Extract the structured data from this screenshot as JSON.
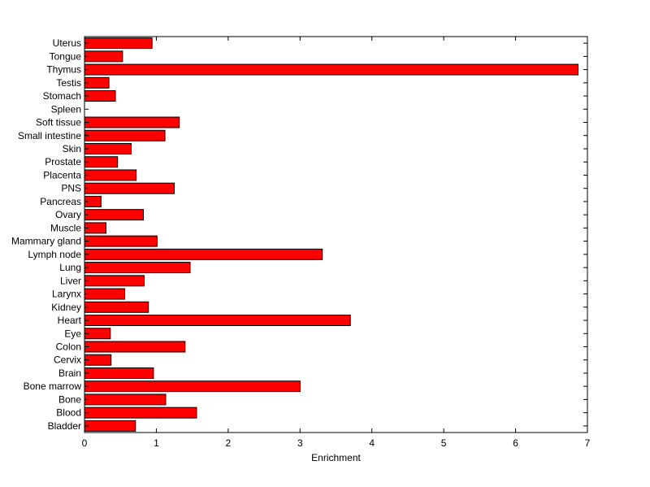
{
  "chart_data": {
    "type": "bar",
    "orientation": "horizontal",
    "categories": [
      "Bladder",
      "Blood",
      "Bone",
      "Bone marrow",
      "Brain",
      "Cervix",
      "Colon",
      "Eye",
      "Heart",
      "Kidney",
      "Larynx",
      "Liver",
      "Lung",
      "Lymph node",
      "Mammary gland",
      "Muscle",
      "Ovary",
      "Pancreas",
      "PNS",
      "Placenta",
      "Prostate",
      "Skin",
      "Small intestine",
      "Soft tissue",
      "Spleen",
      "Stomach",
      "Testis",
      "Thymus",
      "Tongue",
      "Uterus"
    ],
    "values": [
      0.71,
      1.56,
      1.13,
      3.0,
      0.96,
      0.37,
      1.4,
      0.36,
      3.7,
      0.89,
      0.56,
      0.83,
      1.47,
      3.31,
      1.01,
      0.3,
      0.82,
      0.23,
      1.25,
      0.72,
      0.46,
      0.65,
      1.12,
      1.32,
      0.0,
      0.43,
      0.34,
      6.87,
      0.53,
      0.94
    ],
    "xlabel": "Enrichment",
    "ylabel": "",
    "title": "",
    "xlim": [
      0,
      7
    ],
    "xticks": [
      0,
      1,
      2,
      3,
      4,
      5,
      6,
      7
    ],
    "bar_color": "#ff0000",
    "grid": false,
    "legend": false
  }
}
